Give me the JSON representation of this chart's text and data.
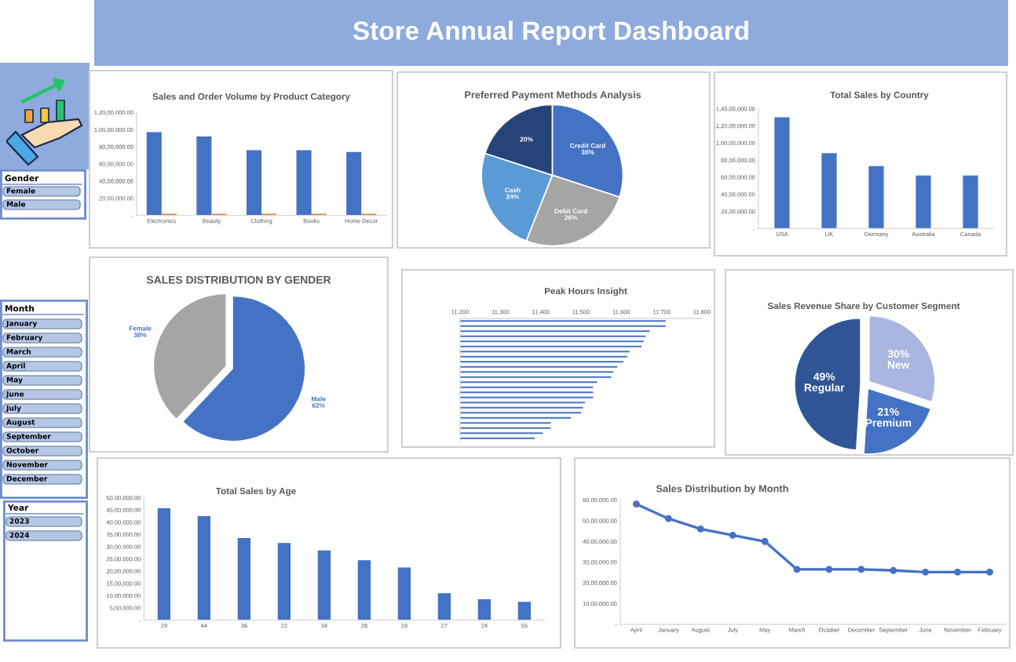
{
  "chart_data": [
    {
      "type": "other",
      "title": "Store Annual Report Dashboard"
    },
    {
      "type": "other",
      "title": "Gender",
      "annotations": [
        "Female",
        "Male"
      ]
    },
    {
      "type": "other",
      "title": "Month",
      "annotations": [
        "January",
        "February",
        "March",
        "April",
        "May",
        "June",
        "July",
        "August",
        "September",
        "October",
        "November",
        "December"
      ]
    },
    {
      "type": "other",
      "title": "Year",
      "annotations": [
        "2023",
        "2024"
      ]
    },
    {
      "type": "bar",
      "title": "Sales and Order Volume by Product Category",
      "categories": [
        "Electronics",
        "Beauty",
        "Clothing",
        "Books",
        "Home Decor"
      ],
      "series": [
        {
          "color": "#4472c4",
          "values": [
            9700000,
            9200000,
            7600000,
            7600000,
            7400000
          ]
        },
        {
          "color": "#ed7d31",
          "values": [
            200000,
            200000,
            200000,
            200000,
            200000
          ]
        }
      ],
      "ylim": [
        0,
        12000000
      ],
      "yticks": [
        {
          "value": 0,
          "label": "-"
        },
        {
          "value": 2000000,
          "label": "20,00,000.00"
        },
        {
          "value": 4000000,
          "label": "40,00,000.00"
        },
        {
          "value": 6000000,
          "label": "60,00,000.00"
        },
        {
          "value": 8000000,
          "label": "80,00,000.00"
        },
        {
          "value": 10000000,
          "label": "1,00,00,000.00"
        },
        {
          "value": 12000000,
          "label": "1,20,00,000.00"
        }
      ]
    },
    {
      "type": "pie",
      "title": "Preferred Payment Methods Analysis",
      "categories": [
        "Credit Card",
        "Debit Card",
        "Cash",
        null
      ],
      "values": [
        30,
        26,
        24,
        20
      ],
      "colors": [
        "#4472c4",
        "#a5a5a5",
        "#5b9bd5",
        "#264478"
      ],
      "value_labels": [
        "30%",
        "26%",
        "24%",
        "20%"
      ]
    },
    {
      "type": "bar",
      "title": "Total Sales by Country",
      "categories": [
        "USA",
        "UK",
        "Germany",
        "Australia",
        "Canada"
      ],
      "values": [
        13000000,
        8800000,
        7300000,
        6200000,
        6200000
      ],
      "color": "#4472c4",
      "ylim": [
        0,
        14000000
      ],
      "yticks": [
        {
          "value": 0,
          "label": "-"
        },
        {
          "value": 2000000,
          "label": "20,00,000.00"
        },
        {
          "value": 4000000,
          "label": "40,00,000.00"
        },
        {
          "value": 6000000,
          "label": "60,00,000.00"
        },
        {
          "value": 8000000,
          "label": "80,00,000.00"
        },
        {
          "value": 10000000,
          "label": "1,00,00,000.00"
        },
        {
          "value": 12000000,
          "label": "1,20,00,000.00"
        },
        {
          "value": 14000000,
          "label": "1,40,00,000.00"
        }
      ]
    },
    {
      "type": "pie",
      "title": "SALES DISTRIBUTION BY GENDER",
      "categories": [
        "Male",
        "Female"
      ],
      "values": [
        62,
        38
      ],
      "colors": [
        "#4472c4",
        "#a5a5a5"
      ],
      "value_labels": [
        "62%",
        "38%"
      ]
    },
    {
      "type": "bar",
      "orientation": "horizontal",
      "title": "Peak Hours Insight",
      "categories": [
        null,
        null,
        null,
        null,
        null,
        null,
        null,
        null,
        null,
        null,
        null,
        null,
        null,
        null,
        null,
        null,
        null,
        null,
        null,
        null,
        null,
        null,
        null,
        null
      ],
      "values": [
        11710,
        11710,
        11670,
        11660,
        11655,
        11650,
        11620,
        11615,
        11605,
        11590,
        11580,
        11575,
        11540,
        11530,
        11530,
        11530,
        11510,
        11505,
        11500,
        11475,
        11425,
        11425,
        11405,
        11385
      ],
      "color": "#4472c4",
      "xlim": [
        11200,
        11800
      ],
      "xticks": [
        {
          "value": 11200,
          "label": "11,200"
        },
        {
          "value": 11300,
          "label": "11,300"
        },
        {
          "value": 11400,
          "label": "11,400"
        },
        {
          "value": 11500,
          "label": "11,500"
        },
        {
          "value": 11600,
          "label": "11,600"
        },
        {
          "value": 11700,
          "label": "11,700"
        },
        {
          "value": 11800,
          "label": "11,800"
        }
      ]
    },
    {
      "type": "pie",
      "title": "Sales Revenue Share by Customer Segment",
      "categories": [
        "New",
        "Premium",
        "Regular"
      ],
      "values": [
        30,
        21,
        49
      ],
      "colors": [
        "#a9b6e0",
        "#4472c4",
        "#2f5597"
      ],
      "value_labels": [
        "30%",
        "21%",
        "49%"
      ]
    },
    {
      "type": "bar",
      "title": "Total Sales by Age",
      "categories": [
        "29",
        "44",
        "36",
        "22",
        "34",
        "28",
        "19",
        "27",
        "24",
        "55"
      ],
      "values": [
        4570000,
        4250000,
        3350000,
        3150000,
        2850000,
        2450000,
        2150000,
        1100000,
        850000,
        750000
      ],
      "color": "#4472c4",
      "ylim": [
        0,
        5000000
      ],
      "yticks": [
        {
          "value": 0,
          "label": "-"
        },
        {
          "value": 500000,
          "label": "5,00,000.00"
        },
        {
          "value": 1000000,
          "label": "10,00,000.00"
        },
        {
          "value": 1500000,
          "label": "15,00,000.00"
        },
        {
          "value": 2000000,
          "label": "20,00,000.00"
        },
        {
          "value": 2500000,
          "label": "25,00,000.00"
        },
        {
          "value": 3000000,
          "label": "30,00,000.00"
        },
        {
          "value": 3500000,
          "label": "35,00,000.00"
        },
        {
          "value": 4000000,
          "label": "40,00,000.00"
        },
        {
          "value": 4500000,
          "label": "45,00,000.00"
        },
        {
          "value": 5000000,
          "label": "50,00,000.00"
        }
      ]
    },
    {
      "type": "line",
      "title": "Sales Distribution by Month",
      "categories": [
        "April",
        "January",
        "August",
        "July",
        "May",
        "March",
        "October",
        "December",
        "September",
        "June",
        "November",
        "February"
      ],
      "values": [
        5800000,
        5100000,
        4600000,
        4300000,
        4000000,
        2650000,
        2650000,
        2650000,
        2600000,
        2520000,
        2520000,
        2520000
      ],
      "color": "#4472c4",
      "marker": "circle",
      "line_style": "solid",
      "ylim": [
        0,
        6000000
      ],
      "yticks": [
        {
          "value": 0,
          "label": "-"
        },
        {
          "value": 1000000,
          "label": "10,00,000.00"
        },
        {
          "value": 2000000,
          "label": "20,00,000.00"
        },
        {
          "value": 3000000,
          "label": "30,00,000.00"
        },
        {
          "value": 4000000,
          "label": "40,00,000.00"
        },
        {
          "value": 5000000,
          "label": "50,00,000.00"
        },
        {
          "value": 6000000,
          "label": "60,00,000.00"
        }
      ]
    }
  ]
}
